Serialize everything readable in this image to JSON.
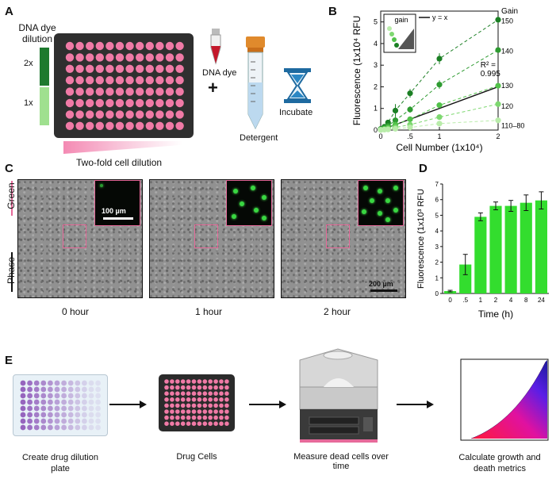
{
  "panels": {
    "a": "A",
    "b": "B",
    "c": "C",
    "d": "D",
    "e": "E"
  },
  "panel_a": {
    "dye_title_line1": "DNA dye",
    "dye_title_line2": "dilution",
    "level_high": "2x",
    "level_low": "1x",
    "dna_dye": "DNA dye",
    "plus": "+",
    "detergent": "Detergent",
    "incubate": "Incubate",
    "cell_dilution": "Two-fold cell dilution",
    "colors": {
      "dark_green": "#1e7a2e",
      "light_green": "#9fe08f",
      "well_pink": "#f07aa6",
      "plate": "#2f2f2f"
    }
  },
  "panel_c": {
    "channel_green": "Green",
    "channel_phase": "Phase",
    "scale_inset": "100 µm",
    "scale_main": "200 µm",
    "timepoints": [
      "0 hour",
      "1 hour",
      "2 hour"
    ]
  },
  "panel_e": {
    "steps": [
      "Create drug dilution plate",
      "Drug Cells",
      "Measure dead cells over time",
      "Calculate growth and death metrics"
    ],
    "step1_line1": "Create drug dilution",
    "step1_line2": "plate",
    "step4_line1": "Calculate growth and",
    "step4_line2": "death metrics"
  },
  "chart_data": [
    {
      "id": "B",
      "type": "line",
      "title": "",
      "xlabel": "Cell Number (1x10⁴)",
      "ylabel": "Fluorescence (1x10⁴ RFU",
      "xlim": [
        0,
        2
      ],
      "ylim": [
        0,
        5.5
      ],
      "xticks": [
        0,
        0.5,
        1,
        2
      ],
      "xtick_labels": [
        "0",
        ".5",
        "1",
        "2"
      ],
      "yticks": [
        0,
        1,
        2,
        3,
        4,
        5
      ],
      "x": [
        0,
        0.0625,
        0.125,
        0.25,
        0.5,
        1,
        2
      ],
      "legend_gain": "gain",
      "legend_line": "y = x",
      "gain_header": "Gain",
      "annotation": "R² = 0.995",
      "annotation_line1": "R² =",
      "annotation_line2": "0.995",
      "series": [
        {
          "name": "150",
          "color": "#1b7f24",
          "values": [
            0.05,
            0.15,
            0.35,
            0.9,
            1.7,
            3.3,
            5.1
          ],
          "errors": [
            0.05,
            0.1,
            0.1,
            0.3,
            0.2,
            0.25,
            0.15
          ]
        },
        {
          "name": "140",
          "color": "#2e9b31",
          "values": [
            0.03,
            0.1,
            0.2,
            0.45,
            0.95,
            2.1,
            3.7
          ],
          "errors": [
            0.03,
            0.05,
            0.08,
            0.2,
            0.15,
            0.2,
            0.1
          ]
        },
        {
          "name": "130",
          "color": "#52c24a",
          "values": [
            0.02,
            0.06,
            0.12,
            0.25,
            0.5,
            1.15,
            2.05
          ],
          "errors": [
            0.02,
            0.03,
            0.05,
            0.1,
            0.08,
            0.1,
            0.08
          ]
        },
        {
          "name": "120",
          "color": "#7ed870",
          "values": [
            0.01,
            0.03,
            0.06,
            0.12,
            0.25,
            0.6,
            1.2
          ],
          "errors": [
            0.01,
            0.02,
            0.03,
            0.04,
            0.05,
            0.06,
            0.05
          ]
        },
        {
          "name": "110–80",
          "color": "#b9ecaa",
          "values": [
            0.01,
            0.02,
            0.03,
            0.06,
            0.12,
            0.3,
            0.45
          ],
          "errors": [
            0.01,
            0.01,
            0.02,
            0.02,
            0.03,
            0.04,
            0.04
          ]
        }
      ],
      "fit_line": {
        "x": [
          0,
          2
        ],
        "y": [
          0,
          2
        ]
      },
      "gain_labels": [
        "150",
        "140",
        "130",
        "120",
        "110–80"
      ]
    },
    {
      "id": "D",
      "type": "bar",
      "title": "",
      "xlabel": "Time (h)",
      "ylabel": "Fluorescence (1x10³ RFU",
      "categories": [
        "0",
        ".5",
        "1",
        "2",
        "4",
        "8",
        "24"
      ],
      "values": [
        0.15,
        1.85,
        4.9,
        5.6,
        5.6,
        5.8,
        5.95
      ],
      "errors": [
        0.05,
        0.65,
        0.25,
        0.25,
        0.35,
        0.5,
        0.55
      ],
      "ylim": [
        0,
        7
      ],
      "yticks": [
        0,
        1,
        2,
        3,
        4,
        5,
        6,
        7
      ],
      "color": "#33dd2e"
    }
  ]
}
